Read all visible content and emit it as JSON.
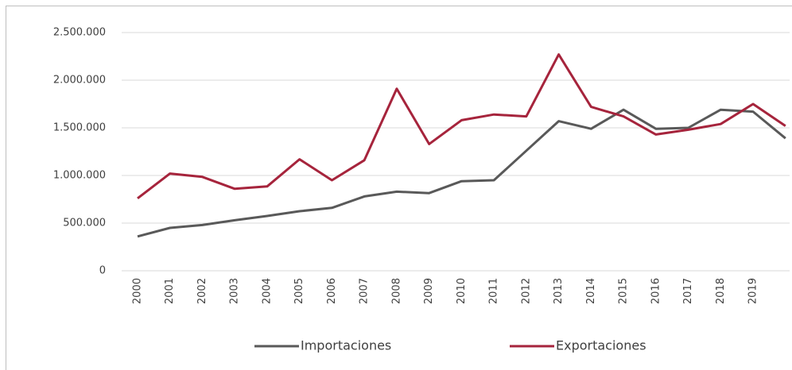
{
  "chart_data": {
    "type": "line",
    "categories": [
      "2000",
      "2001",
      "2002",
      "2003",
      "2004",
      "2005",
      "2006",
      "2007",
      "2008",
      "2009",
      "2010",
      "2011",
      "2012",
      "2013",
      "2014",
      "2015",
      "2016",
      "2017",
      "2018",
      "2019",
      null
    ],
    "series": [
      {
        "name": "Importaciones",
        "color": "#595959",
        "values": [
          360000,
          450000,
          480000,
          530000,
          575000,
          625000,
          660000,
          780000,
          830000,
          815000,
          940000,
          950000,
          1260000,
          1570000,
          1490000,
          1690000,
          1490000,
          1500000,
          1690000,
          1670000,
          1390000
        ]
      },
      {
        "name": "Exportaciones",
        "color": "#a6243c",
        "values": [
          760000,
          1020000,
          985000,
          860000,
          885000,
          1170000,
          950000,
          1160000,
          1910000,
          1330000,
          1580000,
          1640000,
          1620000,
          2270000,
          1720000,
          1620000,
          1430000,
          1480000,
          1540000,
          1750000,
          1520000
        ]
      }
    ],
    "ylim": [
      0,
      2500000
    ],
    "yticks": [
      0,
      {
        "value": 500000,
        "label": "500.000"
      },
      {
        "value": 1000000,
        "label": "1.000.000"
      },
      {
        "value": 1500000,
        "label": "1.500.000"
      },
      {
        "value": 2000000,
        "label": "2.000.000"
      },
      {
        "value": 2500000,
        "label": "2.500.000"
      }
    ],
    "grid": true,
    "legend": "bottom"
  }
}
